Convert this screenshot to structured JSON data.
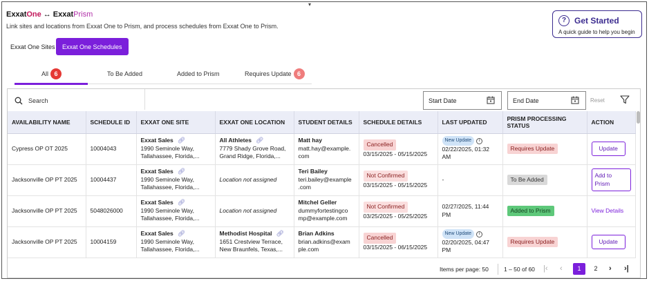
{
  "header": {
    "title_exxat": "Exxat",
    "title_one": "One",
    "title_arrow": "↔",
    "title_exxat2": "Exxat",
    "title_prism": "Prism",
    "subtitle": "Link sites and locations from Exxat One to Prism, and process schedules from Exxat One to Prism."
  },
  "top_tabs": [
    {
      "label": "Exxat One Sites"
    },
    {
      "label": "Exxat One Schedules"
    }
  ],
  "get_started": {
    "title": "Get Started",
    "subtitle": "A quick guide to help you begin"
  },
  "status_tabs": {
    "all": {
      "label": "All",
      "count": "6"
    },
    "to_be_added": {
      "label": "To Be Added"
    },
    "added_to_prism": {
      "label": "Added to Prism"
    },
    "requires_update": {
      "label": "Requires Update",
      "count": "6"
    }
  },
  "toolbar": {
    "search_placeholder": "Search",
    "start_date": "Start Date",
    "end_date": "End Date",
    "reset": "Reset"
  },
  "table": {
    "headers": {
      "availability": "AVAILABILITY NAME",
      "schedule_id": "SCHEDULE ID",
      "site": "EXXAT ONE SITE",
      "location": "EXXAT ONE LOCATION",
      "student": "STUDENT DETAILS",
      "schedule": "SCHEDULE DETAILS",
      "updated": "LAST UPDATED",
      "prism_status": "PRISM PROCESSING STATUS",
      "action": "ACTION"
    },
    "rows": [
      {
        "availability": "Cypress OP OT 2025",
        "schedule_id": "10004043",
        "site_name": "Exxat Sales",
        "site_addr1": "1990 Seminole Way,",
        "site_addr2": "Tallahassee, Florida,...",
        "location_name": "All Athletes",
        "location_addr1": "7779 Shady Grove Road,",
        "location_addr2": "Grand Ridge, Florida,...",
        "student_name": "Matt hay",
        "student_email1": "matt.hay@example.",
        "student_email2": "com",
        "schedule_status": "Cancelled",
        "schedule_dates": "03/15/2025 - 05/15/2025",
        "update_badge": "New Update",
        "updated_line1": "02/22/2025, 01:32",
        "updated_line2": "AM",
        "prism_status": "Requires Update",
        "action": "Update"
      },
      {
        "availability": "Jacksonville OP PT 2025",
        "schedule_id": "10004437",
        "site_name": "Exxat Sales",
        "site_addr1": "1990 Seminole Way,",
        "site_addr2": "Tallahassee, Florida,...",
        "location_na": "Location not assigned",
        "student_name": "Teri Bailey",
        "student_email1": "teri.bailey@example",
        "student_email2": ".com",
        "schedule_status": "Not Confirmed",
        "schedule_dates": "03/15/2025 - 05/15/2025",
        "updated_line1": "-",
        "prism_status": "To Be Added",
        "action": "Add to Prism"
      },
      {
        "availability": "Jacksonville OP PT 2025",
        "schedule_id": "5048026000",
        "site_name": "Exxat Sales",
        "site_addr1": "1990 Seminole Way,",
        "site_addr2": "Tallahassee, Florida,...",
        "location_na": "Location not assigned",
        "student_name": "Mitchel Geller",
        "student_email1": "dummyfortestingco",
        "student_email2": "mp@example.com",
        "schedule_status": "Not Confirmed",
        "schedule_dates": "03/25/2025 - 05/25/2025",
        "updated_line1": "02/27/2025, 11:44",
        "updated_line2": "PM",
        "prism_status": "Added to Prism",
        "action": "View Details"
      },
      {
        "availability": "Jacksonville OP PT 2025",
        "schedule_id": "10004159",
        "site_name": "Exxat Sales",
        "site_addr1": "1990 Seminole Way,",
        "site_addr2": "Tallahassee, Florida,...",
        "location_name": "Methodist Hospital",
        "location_addr1": "1651 Crestview Terrace,",
        "location_addr2": "New Braunfels, Texas,...",
        "student_name": "Brian Adkins",
        "student_email1": "brian.adkins@exam",
        "student_email2": "ple.com",
        "schedule_status": "Cancelled",
        "schedule_dates": "03/15/2025 - 06/15/2025",
        "update_badge": "New Update",
        "updated_line1": "02/20/2025, 04:47",
        "updated_line2": "PM",
        "prism_status": "Requires Update",
        "action": "Update"
      }
    ]
  },
  "pagination": {
    "items_per_page": "Items per page: 50",
    "range": "1 – 50 of 60",
    "pages": [
      "1",
      "2"
    ]
  }
}
